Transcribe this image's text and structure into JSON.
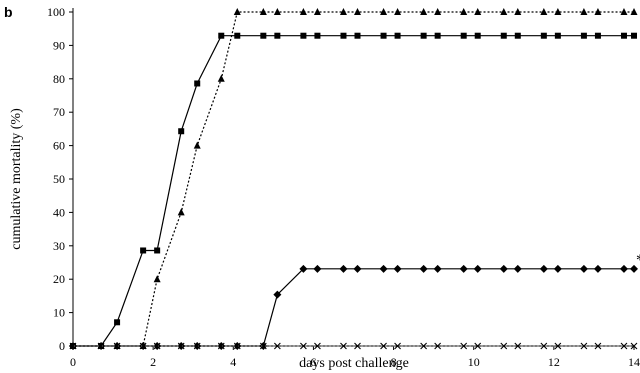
{
  "panel_label": "b",
  "chart_data": {
    "type": "line",
    "title": "",
    "xlabel": "days post challenge",
    "ylabel": "cumulative mortality (%)",
    "xlim": [
      0,
      14
    ],
    "ylim": [
      0,
      100
    ],
    "xticks": [
      0,
      2,
      4,
      6,
      8,
      10,
      12,
      14
    ],
    "yticks": [
      0,
      10,
      20,
      30,
      40,
      50,
      60,
      70,
      80,
      90,
      100
    ],
    "grid": false,
    "legend": "none",
    "series": [
      {
        "marker": "square",
        "line": "solid",
        "x": [
          0,
          0.7,
          1.1,
          1.75,
          2.1,
          2.7,
          3.1,
          3.7,
          4.1,
          4.75,
          5.1,
          5.75,
          6.1,
          6.75,
          7.1,
          7.75,
          8.1,
          8.75,
          9.1,
          9.75,
          10.1,
          10.75,
          11.1,
          11.75,
          12.1,
          12.75,
          13.1,
          13.75,
          14
        ],
        "y": [
          0,
          0,
          7.1,
          28.6,
          28.6,
          64.3,
          78.6,
          92.9,
          92.9,
          92.9,
          92.9,
          92.9,
          92.9,
          92.9,
          92.9,
          92.9,
          92.9,
          92.9,
          92.9,
          92.9,
          92.9,
          92.9,
          92.9,
          92.9,
          92.9,
          92.9,
          92.9,
          92.9,
          92.9
        ]
      },
      {
        "marker": "triangle",
        "line": "dotted",
        "x": [
          0,
          0.7,
          1.1,
          1.75,
          2.1,
          2.7,
          3.1,
          3.7,
          4.1,
          4.75,
          5.1,
          5.75,
          6.1,
          6.75,
          7.1,
          7.75,
          8.1,
          8.75,
          9.1,
          9.75,
          10.1,
          10.75,
          11.1,
          11.75,
          12.1,
          12.75,
          13.1,
          13.75,
          14
        ],
        "y": [
          0,
          0,
          0,
          0,
          20,
          40,
          60,
          80,
          100,
          100,
          100,
          100,
          100,
          100,
          100,
          100,
          100,
          100,
          100,
          100,
          100,
          100,
          100,
          100,
          100,
          100,
          100,
          100,
          100
        ]
      },
      {
        "marker": "diamond",
        "line": "solid",
        "x": [
          0,
          0.7,
          1.1,
          1.75,
          2.1,
          2.7,
          3.1,
          3.7,
          4.1,
          4.75,
          5.1,
          5.75,
          6.1,
          6.75,
          7.1,
          7.75,
          8.1,
          8.75,
          9.1,
          9.75,
          10.1,
          10.75,
          11.1,
          11.75,
          12.1,
          12.75,
          13.1,
          13.75,
          14
        ],
        "y": [
          0,
          0,
          0,
          0,
          0,
          0,
          0,
          0,
          0,
          0,
          15.4,
          23.1,
          23.1,
          23.1,
          23.1,
          23.1,
          23.1,
          23.1,
          23.1,
          23.1,
          23.1,
          23.1,
          23.1,
          23.1,
          23.1,
          23.1,
          23.1,
          23.1,
          23.1
        ]
      },
      {
        "marker": "x",
        "line": "dotted",
        "x": [
          0,
          0.7,
          1.1,
          1.75,
          2.1,
          2.7,
          3.1,
          3.7,
          4.1,
          4.75,
          5.1,
          5.75,
          6.1,
          6.75,
          7.1,
          7.75,
          8.1,
          8.75,
          9.1,
          9.75,
          10.1,
          10.75,
          11.1,
          11.75,
          12.1,
          12.75,
          13.1,
          13.75,
          14
        ],
        "y": [
          0,
          0,
          0,
          0,
          0,
          0,
          0,
          0,
          0,
          0,
          0,
          0,
          0,
          0,
          0,
          0,
          0,
          0,
          0,
          0,
          0,
          0,
          0,
          0,
          0,
          0,
          0,
          0,
          0
        ]
      }
    ],
    "annotations": [
      {
        "text": "*",
        "x": 14,
        "y": 23.1
      }
    ]
  }
}
